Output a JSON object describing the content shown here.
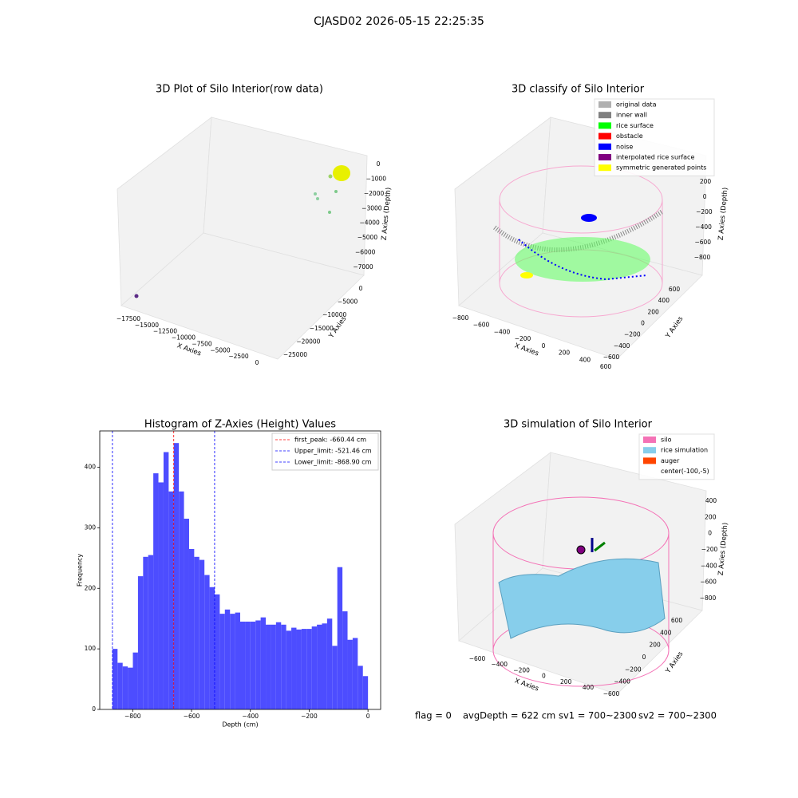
{
  "suptitle": "CJASD02 2026-05-15 22:25:35",
  "footer": [
    "flag = 0",
    "avgDepth = 622 cm",
    "sv1 = 700~2300",
    "sv2 = 700~2300"
  ],
  "chart_data": [
    {
      "type": "scatter3d",
      "title": "3D Plot of Silo Interior(row data)",
      "x_label": "X Axies",
      "y_label": "Y Axies",
      "z_label": "Z Axies (Depth)",
      "xticks": [
        {
          "value": -17500,
          "label": "−17500"
        },
        {
          "value": -15000,
          "label": "−15000"
        },
        {
          "value": -12500,
          "label": "−12500"
        },
        {
          "value": -10000,
          "label": "−10000"
        },
        {
          "value": -7500,
          "label": "−7500"
        },
        {
          "value": -5000,
          "label": "−5000"
        },
        {
          "value": -2500,
          "label": "−2500"
        },
        0
      ],
      "yticks": [
        0,
        {
          "value": -5000,
          "label": "−5000"
        },
        {
          "value": -10000,
          "label": "−10000"
        },
        {
          "value": -15000,
          "label": "−15000"
        },
        {
          "value": -20000,
          "label": "−20000"
        },
        {
          "value": -25000,
          "label": "−25000"
        }
      ],
      "zticks": [
        0,
        {
          "value": -1000,
          "label": "−1000"
        },
        {
          "value": -2000,
          "label": "−2000"
        },
        {
          "value": -3000,
          "label": "−3000"
        },
        {
          "value": -4000,
          "label": "−4000"
        },
        {
          "value": -5000,
          "label": "−5000"
        },
        {
          "value": -6000,
          "label": "−6000"
        },
        {
          "value": -7000,
          "label": "−7000"
        }
      ]
    },
    {
      "type": "scatter3d",
      "title": "3D classify of Silo Interior",
      "x_label": "X Axies",
      "y_label": "Y Axies",
      "z_label": "Z Axies (Depth)",
      "xticks": [
        {
          "value": -800,
          "label": "−800"
        },
        {
          "value": -600,
          "label": "−600"
        },
        {
          "value": -400,
          "label": "−400"
        },
        {
          "value": -200,
          "label": "−200"
        },
        0,
        200,
        400,
        600
      ],
      "yticks": [
        {
          "value": -600,
          "label": "−600"
        },
        {
          "value": -400,
          "label": "−400"
        },
        {
          "value": -200,
          "label": "−200"
        },
        0,
        200,
        400,
        600
      ],
      "zticks": [
        200,
        0,
        {
          "value": -200,
          "label": "−200"
        },
        {
          "value": -400,
          "label": "−400"
        },
        {
          "value": -600,
          "label": "−600"
        },
        {
          "value": -800,
          "label": "−800"
        }
      ],
      "legend": [
        {
          "name": "original data",
          "color": "#b0b0b0"
        },
        {
          "name": "inner wall",
          "color": "#808080"
        },
        {
          "name": "rice surface",
          "color": "#00ff00"
        },
        {
          "name": "obstacle",
          "color": "#ff0000"
        },
        {
          "name": "noise",
          "color": "#0000ff"
        },
        {
          "name": "interpolated rice surface",
          "color": "#800080"
        },
        {
          "name": "symmetric generated points",
          "color": "#ffff00"
        }
      ]
    },
    {
      "type": "histogram",
      "title": "Histogram of Z-Axies (Height) Values",
      "x_label": "Depth (cm)",
      "y_label": "Frequency",
      "color": "#4d4dff",
      "bins": [
        -868.9,
        -851.5,
        -834.1,
        -816.8,
        -799.4,
        -782.0,
        -764.6,
        -747.3,
        -729.9,
        -712.5,
        -695.1,
        -677.7,
        -660.4,
        -643.0,
        -625.6,
        -608.2,
        -590.9,
        -573.5,
        -556.1,
        -538.7,
        -521.3,
        -504.0,
        -486.6,
        -469.2,
        -451.8,
        -434.5,
        -417.1,
        -399.7,
        -382.3,
        -365.0,
        -347.6,
        -330.2,
        -312.8,
        -295.4,
        -278.1,
        -260.7,
        -243.3,
        -225.9,
        -208.6,
        -191.2,
        -173.8,
        -156.4,
        -139.1,
        -121.7,
        -104.3,
        -86.9,
        -69.5,
        -52.2,
        -34.8,
        -17.4,
        0
      ],
      "values": [
        100,
        77,
        71,
        69,
        94,
        220,
        252,
        255,
        390,
        375,
        425,
        360,
        440,
        360,
        315,
        265,
        252,
        247,
        222,
        202,
        190,
        158,
        165,
        158,
        160,
        145,
        145,
        145,
        147,
        152,
        140,
        140,
        144,
        140,
        130,
        135,
        132,
        133,
        133,
        137,
        140,
        142,
        150,
        105,
        235,
        162,
        115,
        118,
        72,
        55
      ],
      "xlim": [
        -912,
        43
      ],
      "ylim": [
        0,
        460
      ],
      "xticks": [
        {
          "value": -800,
          "label": "−800"
        },
        {
          "value": -600,
          "label": "−600"
        },
        {
          "value": -400,
          "label": "−400"
        },
        {
          "value": -200,
          "label": "−200"
        },
        0
      ],
      "yticks": [
        0,
        100,
        200,
        300,
        400
      ],
      "vlines": [
        {
          "name": "first_peak: -660.44 cm",
          "value": -660.44,
          "color": "#ff0000"
        },
        {
          "name": "Upper_limit: -521.46 cm",
          "value": -521.46,
          "color": "#0000ff"
        },
        {
          "name": "Lower_limit: -868.90 cm",
          "value": -868.9,
          "color": "#0000ff"
        }
      ]
    },
    {
      "type": "surface3d",
      "title": "3D simulation of Silo Interior",
      "x_label": "X Axies",
      "y_label": "Y Axies",
      "z_label": "Z Axies (Depth)",
      "xticks": [
        {
          "value": -600,
          "label": "−600"
        },
        {
          "value": -400,
          "label": "−400"
        },
        {
          "value": -200,
          "label": "−200"
        },
        0,
        200,
        400
      ],
      "yticks": [
        {
          "value": -600,
          "label": "−600"
        },
        {
          "value": -400,
          "label": "−400"
        },
        {
          "value": -200,
          "label": "−200"
        },
        0,
        200,
        400,
        600
      ],
      "zticks": [
        400,
        200,
        0,
        {
          "value": -200,
          "label": "−200"
        },
        {
          "value": -400,
          "label": "−400"
        },
        {
          "value": -600,
          "label": "−600"
        },
        {
          "value": -800,
          "label": "−800"
        }
      ],
      "legend": [
        {
          "name": "silo",
          "color": "#f472b6"
        },
        {
          "name": "rice simulation",
          "color": "#87ceeb"
        },
        {
          "name": "auger",
          "color": "#ff4500"
        },
        {
          "name": "center(-100,-5)",
          "color": "#ffffff"
        }
      ]
    }
  ]
}
